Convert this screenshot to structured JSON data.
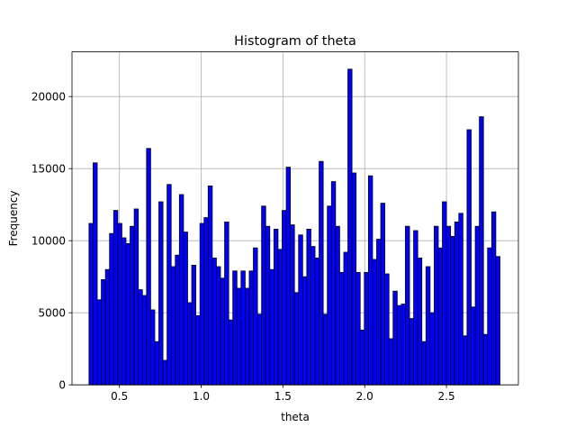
{
  "chart_data": {
    "type": "bar",
    "title": "Histogram of theta",
    "xlabel": "theta",
    "ylabel": "Frequency",
    "xlim": [
      0.21,
      2.94
    ],
    "ylim": [
      0,
      23100
    ],
    "xticks": [
      0.5,
      1.0,
      1.5,
      2.0,
      2.5
    ],
    "xtick_labels": [
      "0.5",
      "1.0",
      "1.5",
      "2.0",
      "2.5"
    ],
    "yticks": [
      0,
      5000,
      10000,
      15000,
      20000
    ],
    "ytick_labels": [
      "0",
      "5000",
      "10000",
      "15000",
      "20000"
    ],
    "grid": true,
    "bar_color": "#0000ff",
    "edge_color": "#000000",
    "bin_range": [
      0.314,
      2.827
    ],
    "bins": 100,
    "counts": [
      11200,
      15400,
      5900,
      7300,
      8000,
      10500,
      12100,
      11200,
      10200,
      9800,
      11000,
      12200,
      6600,
      6200,
      16400,
      5200,
      3000,
      12700,
      1700,
      13900,
      8200,
      9000,
      13200,
      10600,
      5700,
      8300,
      4800,
      11200,
      11600,
      13800,
      8800,
      8200,
      7400,
      11300,
      4500,
      7900,
      6700,
      7900,
      6700,
      7900,
      9500,
      4900,
      12400,
      11000,
      8000,
      10800,
      9400,
      12100,
      15100,
      11100,
      6400,
      10400,
      7500,
      10800,
      9600,
      8800,
      15500,
      4900,
      12400,
      14100,
      11000,
      7800,
      9200,
      21900,
      14700,
      7800,
      3800,
      7800,
      14500,
      8700,
      10100,
      12600,
      7700,
      3200,
      6500,
      5500,
      5600,
      11000,
      4600,
      10700,
      8800,
      3000,
      8200,
      5000,
      11000,
      9500,
      12700,
      11000,
      10300,
      11300,
      11900,
      3400,
      17700,
      5400,
      11000,
      18600,
      3500,
      9500,
      12000,
      8900
    ]
  }
}
